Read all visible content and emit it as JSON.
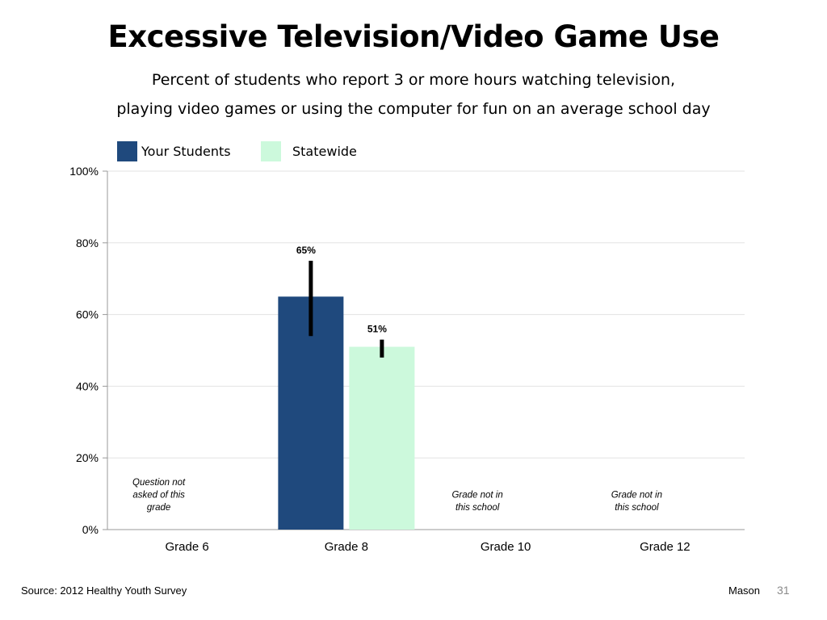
{
  "slide": {
    "title": "Excessive Television/Video Game Use",
    "subtitle_line1": "Percent of students who report 3 or more hours watching television,",
    "subtitle_line2": "playing video games or using the computer for fun on an average school day",
    "source": "Source: 2012 Healthy Youth Survey",
    "location": "Mason",
    "page_number": "31"
  },
  "chart_data": {
    "type": "bar",
    "categories": [
      "Grade 6",
      "Grade 8",
      "Grade 10",
      "Grade 12"
    ],
    "series": [
      {
        "name": "Your Students",
        "color": "#1f497d",
        "values": [
          null,
          65,
          null,
          null
        ],
        "error_low": [
          null,
          54,
          null,
          null
        ],
        "error_high": [
          null,
          75,
          null,
          null
        ],
        "data_labels": [
          null,
          "65%",
          null,
          null
        ]
      },
      {
        "name": "Statewide",
        "color": "#ccf9dc",
        "values": [
          null,
          51,
          null,
          null
        ],
        "error_low": [
          null,
          48,
          null,
          null
        ],
        "error_high": [
          null,
          53,
          null,
          null
        ],
        "data_labels": [
          null,
          "51%",
          null,
          null
        ]
      }
    ],
    "ylim": [
      0,
      100
    ],
    "yticks": [
      0,
      20,
      40,
      60,
      80,
      100
    ],
    "ytick_labels": [
      "0%",
      "20%",
      "40%",
      "60%",
      "80%",
      "100%"
    ],
    "grid": true,
    "legend_position": "top-left",
    "annotations": [
      {
        "category": "Grade 6",
        "lines": [
          "Question not",
          "asked of this",
          "grade"
        ]
      },
      {
        "category": "Grade 10",
        "lines": [
          "Grade not in",
          "this school"
        ]
      },
      {
        "category": "Grade 12",
        "lines": [
          "Grade not in",
          "this school"
        ]
      }
    ]
  }
}
